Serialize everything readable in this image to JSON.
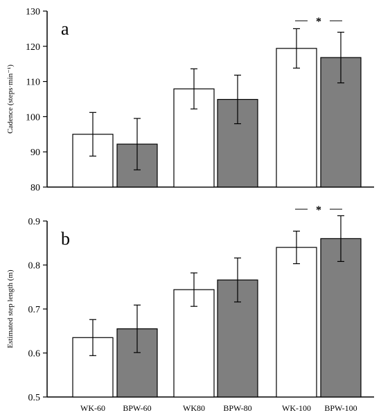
{
  "chart_data": [
    {
      "type": "bar",
      "panel_label": "a",
      "ylabel": "Cadence (steps·min⁻¹)",
      "ylim": [
        80,
        130
      ],
      "yticks": [
        80,
        90,
        100,
        110,
        120,
        130
      ],
      "categories": [
        "WK-60",
        "BPW-60",
        "WK80",
        "BPW-80",
        "WK-100",
        "BPW-100"
      ],
      "values": [
        95.0,
        92.2,
        107.9,
        104.9,
        119.4,
        116.8
      ],
      "errors": [
        6.2,
        7.3,
        5.7,
        6.9,
        5.6,
        7.2
      ],
      "bar_colors": [
        "#ffffff",
        "#7f7f7f",
        "#ffffff",
        "#7f7f7f",
        "#ffffff",
        "#7f7f7f"
      ],
      "significance": {
        "between": [
          4,
          5
        ],
        "symbol": "*"
      }
    },
    {
      "type": "bar",
      "panel_label": "b",
      "ylabel": "Estimated step length (m)",
      "ylim": [
        0.5,
        0.9
      ],
      "yticks": [
        "0.5",
        "0.6",
        "0.7",
        "0.8",
        "0.9"
      ],
      "categories": [
        "WK-60",
        "BPW-60",
        "WK80",
        "BPW-80",
        "WK-100",
        "BPW-100"
      ],
      "values": [
        0.635,
        0.655,
        0.744,
        0.766,
        0.84,
        0.86
      ],
      "errors": [
        0.041,
        0.054,
        0.038,
        0.05,
        0.037,
        0.052
      ],
      "bar_colors": [
        "#ffffff",
        "#7f7f7f",
        "#ffffff",
        "#7f7f7f",
        "#ffffff",
        "#7f7f7f"
      ],
      "significance": {
        "between": [
          4,
          5
        ],
        "symbol": "*"
      }
    }
  ]
}
